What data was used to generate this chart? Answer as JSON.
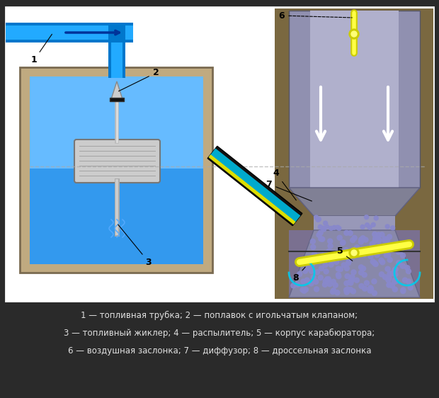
{
  "bg_color": "#2a2a2a",
  "main_bg": "#f0f0f0",
  "title_text1": "1 — топливная трубка; 2 — поплавок с игольчатым клапаном;",
  "title_text2": "3 — топливный жиклер; 4 — распылитель; 5 — корпус карабюратора;",
  "title_text3": "6 — воздушная заслонка; 7 — диффузор; 8 — дроссельная заслонка",
  "label_color": "#e0e0e0",
  "text_color": "#e0e0e0"
}
